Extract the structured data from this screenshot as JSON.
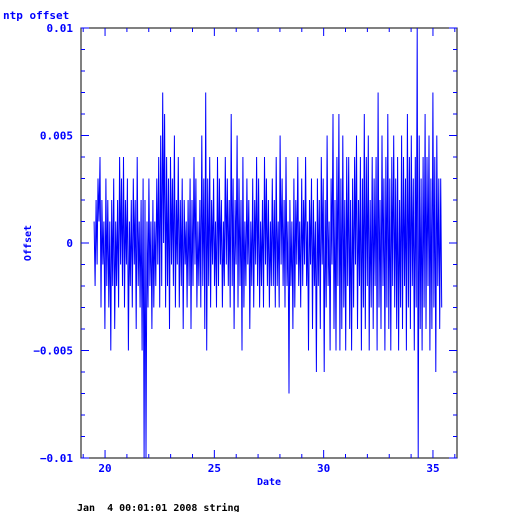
{
  "chart_data": {
    "type": "line",
    "title": "ntp offset",
    "xlabel": "Date",
    "ylabel": "Offset",
    "footer": "Jan  4 00:01:01 2008 string",
    "xlim": [
      18.9,
      36.1
    ],
    "ylim": [
      -0.01,
      0.01
    ],
    "x_ticks": [
      20,
      25,
      30,
      35
    ],
    "x_tick_labels": [
      "20",
      "25",
      "30",
      "35"
    ],
    "y_ticks": [
      -0.01,
      -0.005,
      0,
      0.005,
      0.01
    ],
    "y_tick_labels": [
      "−0.01",
      "−0.005",
      "0",
      "0.005",
      "0.01"
    ],
    "grid": false,
    "colors": {
      "line": "#0000ff",
      "axis": "#0000ff",
      "frame": "#000000"
    },
    "series": [
      {
        "name": "",
        "x_start": 19.5,
        "x_end": 35.4,
        "values": [
          0.001,
          -0.002,
          0.002,
          -0.001,
          0.003,
          0.001,
          0.004,
          -0.003,
          0.002,
          -0.001,
          0.001,
          -0.004,
          0.003,
          -0.002,
          0.002,
          -0.003,
          0.001,
          -0.005,
          0.002,
          -0.002,
          0.003,
          -0.004,
          0.001,
          -0.002,
          0.002,
          -0.003,
          0.004,
          -0.001,
          0.003,
          -0.002,
          0.004,
          -0.003,
          0.002,
          -0.001,
          0.003,
          -0.005,
          0.001,
          -0.002,
          0.002,
          -0.003,
          0.003,
          -0.001,
          0.002,
          -0.004,
          0.004,
          -0.002,
          0.001,
          -0.003,
          0.002,
          -0.005,
          0.003,
          -0.01,
          0.002,
          -0.01,
          0.001,
          -0.003,
          0.003,
          -0.002,
          0.001,
          -0.004,
          0.002,
          -0.003,
          0.001,
          -0.002,
          0.003,
          -0.001,
          0.004,
          -0.003,
          0.005,
          -0.002,
          0.007,
          0.0,
          0.006,
          -0.003,
          0.004,
          -0.002,
          0.003,
          -0.004,
          0.004,
          -0.001,
          0.003,
          -0.002,
          0.005,
          -0.003,
          0.002,
          -0.001,
          0.004,
          -0.003,
          0.002,
          -0.002,
          0.003,
          -0.004,
          0.002,
          -0.001,
          0.001,
          -0.003,
          0.002,
          -0.002,
          0.003,
          -0.004,
          0.002,
          -0.002,
          0.004,
          -0.001,
          0.003,
          -0.003,
          0.001,
          -0.002,
          0.002,
          -0.003,
          0.005,
          -0.002,
          0.003,
          -0.004,
          0.007,
          -0.005,
          0.003,
          -0.002,
          0.004,
          -0.003,
          0.002,
          -0.001,
          0.003,
          -0.002,
          0.001,
          -0.003,
          0.004,
          -0.002,
          0.003,
          -0.001,
          0.002,
          -0.003,
          0.001,
          -0.002,
          0.004,
          -0.001,
          0.003,
          -0.002,
          0.002,
          -0.003,
          0.006,
          -0.002,
          0.003,
          -0.004,
          0.002,
          -0.001,
          0.005,
          -0.003,
          0.003,
          -0.002,
          0.002,
          -0.005,
          0.004,
          -0.003,
          0.001,
          -0.002,
          0.003,
          -0.001,
          0.002,
          -0.004,
          0.001,
          -0.002,
          0.003,
          -0.003,
          0.002,
          -0.001,
          0.004,
          -0.002,
          0.003,
          -0.003,
          0.001,
          -0.002,
          0.002,
          -0.003,
          0.004,
          -0.001,
          0.003,
          -0.002,
          0.002,
          -0.003,
          0.001,
          -0.002,
          0.003,
          -0.002,
          0.002,
          -0.003,
          0.004,
          -0.002,
          0.001,
          -0.003,
          0.005,
          -0.001,
          0.003,
          -0.002,
          0.002,
          -0.003,
          0.004,
          -0.002,
          0.001,
          -0.007,
          0.002,
          -0.002,
          0.001,
          -0.004,
          0.003,
          -0.003,
          0.002,
          -0.001,
          0.004,
          -0.002,
          0.001,
          -0.003,
          0.003,
          -0.002,
          0.002,
          -0.001,
          0.004,
          -0.002,
          0.001,
          -0.005,
          0.002,
          -0.001,
          0.003,
          -0.004,
          0.002,
          -0.002,
          0.001,
          -0.006,
          0.003,
          -0.002,
          0.002,
          -0.004,
          0.004,
          -0.001,
          0.003,
          -0.006,
          0.002,
          -0.003,
          0.005,
          -0.002,
          0.001,
          -0.005,
          0.003,
          -0.001,
          0.006,
          -0.004,
          0.002,
          -0.005,
          0.004,
          -0.002,
          0.006,
          -0.005,
          0.003,
          -0.004,
          0.005,
          -0.003,
          0.002,
          -0.005,
          0.004,
          -0.002,
          0.004,
          -0.004,
          0.002,
          -0.005,
          0.003,
          -0.003,
          0.004,
          -0.001,
          0.005,
          -0.004,
          0.002,
          -0.002,
          0.004,
          -0.005,
          0.003,
          -0.003,
          0.006,
          -0.004,
          0.004,
          -0.002,
          0.005,
          -0.005,
          0.002,
          -0.003,
          0.004,
          -0.004,
          0.003,
          -0.002,
          0.004,
          -0.005,
          0.007,
          -0.003,
          0.002,
          -0.004,
          0.005,
          -0.002,
          0.003,
          -0.005,
          0.004,
          -0.003,
          0.006,
          -0.004,
          0.003,
          -0.005,
          0.004,
          -0.002,
          0.005,
          -0.003,
          0.003,
          -0.004,
          0.004,
          -0.005,
          0.002,
          -0.003,
          0.005,
          -0.004,
          0.004,
          -0.002,
          0.003,
          -0.005,
          0.006,
          -0.003,
          0.004,
          -0.004,
          0.005,
          -0.002,
          0.003,
          -0.005,
          0.004,
          -0.003,
          0.01,
          -0.01,
          0.005,
          -0.004,
          0.003,
          -0.005,
          0.004,
          -0.003,
          0.006,
          -0.004,
          0.004,
          -0.002,
          0.005,
          -0.005,
          0.003,
          -0.004,
          0.007,
          -0.003,
          0.004,
          -0.006,
          0.005,
          -0.002,
          0.003,
          -0.004,
          0.003,
          -0.003
        ]
      }
    ]
  }
}
